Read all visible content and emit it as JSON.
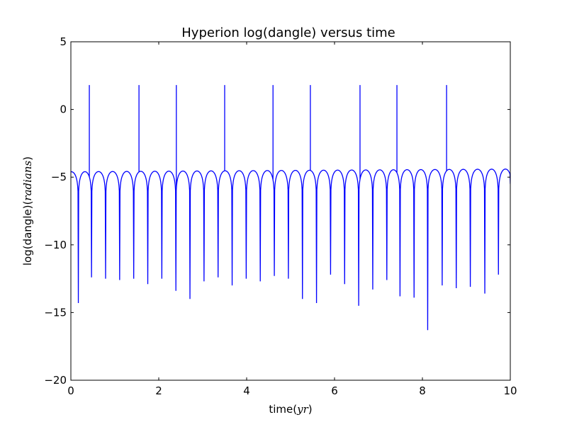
{
  "chart_data": {
    "type": "line",
    "title": "Hyperion log(dangle) versus time",
    "xlabel": {
      "prefix": "time",
      "math": "yr"
    },
    "ylabel": {
      "prefix": "log(dangle)",
      "math": "radians"
    },
    "xlim": [
      0,
      10
    ],
    "ylim": [
      -20,
      5
    ],
    "xticks": [
      0,
      2,
      4,
      6,
      8,
      10
    ],
    "yticks": [
      5,
      0,
      -5,
      -10,
      -15,
      -20
    ],
    "xtick_labels": [
      "0",
      "2",
      "4",
      "6",
      "8",
      "10"
    ],
    "ytick_labels": [
      "5",
      "0",
      "−5",
      "−10",
      "−15",
      "−20"
    ],
    "grid": false,
    "line_color": "#0000ff",
    "series": [
      {
        "envelope": {
          "start": -4.6,
          "end": -4.4,
          "period_yr": 0.318,
          "first_dip_t": 0.17
        },
        "dips": [
          {
            "t": 0.17,
            "y": -14.3
          },
          {
            "t": 0.47,
            "y": -12.4
          },
          {
            "t": 0.79,
            "y": -12.5
          },
          {
            "t": 1.11,
            "y": -12.6
          },
          {
            "t": 1.43,
            "y": -12.5
          },
          {
            "t": 1.75,
            "y": -12.9
          },
          {
            "t": 2.07,
            "y": -12.5
          },
          {
            "t": 2.39,
            "y": -13.4
          },
          {
            "t": 2.71,
            "y": -14.0
          },
          {
            "t": 3.03,
            "y": -12.7
          },
          {
            "t": 3.35,
            "y": -12.4
          },
          {
            "t": 3.67,
            "y": -13.0
          },
          {
            "t": 3.99,
            "y": -12.5
          },
          {
            "t": 4.31,
            "y": -12.7
          },
          {
            "t": 4.63,
            "y": -12.3
          },
          {
            "t": 4.95,
            "y": -12.5
          },
          {
            "t": 5.27,
            "y": -14.0
          },
          {
            "t": 5.59,
            "y": -14.3
          },
          {
            "t": 5.91,
            "y": -12.2
          },
          {
            "t": 6.23,
            "y": -12.9
          },
          {
            "t": 6.55,
            "y": -14.5
          },
          {
            "t": 6.87,
            "y": -13.3
          },
          {
            "t": 7.19,
            "y": -12.6
          },
          {
            "t": 7.49,
            "y": -13.8
          },
          {
            "t": 7.81,
            "y": -13.9
          },
          {
            "t": 8.12,
            "y": -16.3
          },
          {
            "t": 8.45,
            "y": -13.0
          },
          {
            "t": 8.77,
            "y": -13.2
          },
          {
            "t": 9.09,
            "y": -13.1
          },
          {
            "t": 9.42,
            "y": -13.6
          },
          {
            "t": 9.73,
            "y": -12.2
          }
        ],
        "spikes": [
          {
            "t": 0.42,
            "y": 1.8
          },
          {
            "t": 1.55,
            "y": 1.8
          },
          {
            "t": 2.4,
            "y": 1.8
          },
          {
            "t": 3.5,
            "y": 1.8
          },
          {
            "t": 4.6,
            "y": 1.8
          },
          {
            "t": 5.45,
            "y": 1.8
          },
          {
            "t": 6.58,
            "y": 1.8
          },
          {
            "t": 7.42,
            "y": 1.8
          },
          {
            "t": 8.55,
            "y": 1.8
          }
        ],
        "end_value": -5.5
      }
    ]
  }
}
